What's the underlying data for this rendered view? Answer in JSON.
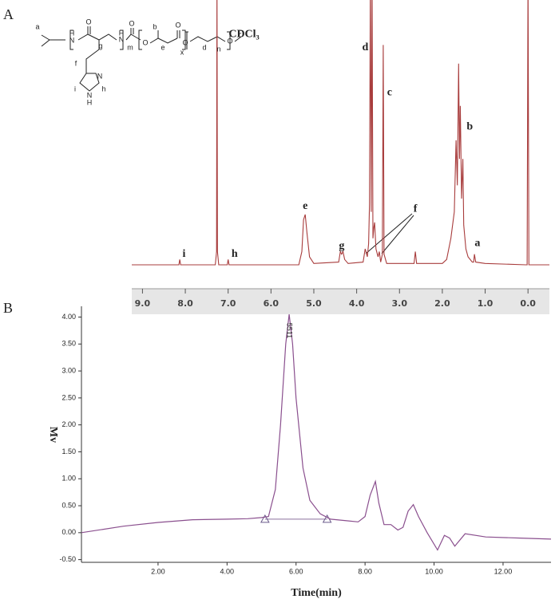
{
  "chart_data": [
    {
      "type": "line",
      "panel_label": "A",
      "color": "#a83c3c",
      "x": [
        9.25,
        8.15,
        8.13,
        8.11,
        7.3,
        7.27,
        7.26,
        7.25,
        7.22,
        7.02,
        7.0,
        6.98,
        5.35,
        5.28,
        5.24,
        5.2,
        5.16,
        5.1,
        5.0,
        4.42,
        4.38,
        4.35,
        4.32,
        4.28,
        4.2,
        3.85,
        3.8,
        3.75,
        3.72,
        3.7,
        3.68,
        3.66,
        3.64,
        3.62,
        3.6,
        3.58,
        3.55,
        3.5,
        3.47,
        3.44,
        3.4,
        3.38,
        3.36,
        3.3,
        2.66,
        2.63,
        2.6,
        2.0,
        1.9,
        1.8,
        1.72,
        1.68,
        1.65,
        1.62,
        1.6,
        1.58,
        1.55,
        1.52,
        1.5,
        1.45,
        1.4,
        1.3,
        1.27,
        1.25,
        1.22,
        1.0,
        0.05,
        0.02,
        0.0,
        -0.02,
        -0.05,
        -0.5
      ],
      "values": [
        0,
        0,
        2,
        0,
        0,
        5,
        110,
        5,
        0,
        0,
        2,
        0,
        0,
        5,
        17,
        19,
        12,
        3,
        0.5,
        1,
        5,
        4,
        5,
        2,
        0.5,
        1,
        6,
        3,
        8,
        23,
        110,
        20,
        110,
        10,
        14,
        16,
        6,
        3,
        5,
        1,
        4,
        83,
        4,
        0.5,
        0.5,
        5,
        0.5,
        0.5,
        2,
        10,
        20,
        47,
        30,
        76,
        40,
        60,
        25,
        40,
        15,
        6,
        3,
        1,
        1,
        4,
        1,
        0.5,
        0,
        0,
        110,
        0,
        0,
        0
      ],
      "xlim": [
        9.25,
        -0.5
      ],
      "ylim": [
        -2,
        100
      ],
      "xticks": [
        {
          "value": 9,
          "label": "9.0"
        },
        {
          "value": 8,
          "label": "8.0"
        },
        {
          "value": 7,
          "label": "7.0"
        },
        {
          "value": 6,
          "label": "6.0"
        },
        {
          "value": 5,
          "label": "5.0"
        },
        {
          "value": 4,
          "label": "4.0"
        },
        {
          "value": 3,
          "label": "3.0"
        },
        {
          "value": 2,
          "label": "2.0"
        },
        {
          "value": 1,
          "label": "1.0"
        },
        {
          "value": 0,
          "label": "0.0"
        }
      ],
      "annotations": [
        {
          "text": "CDCl₃",
          "x": 6.63,
          "y": 87
        },
        {
          "text": "i",
          "x": 8.03,
          "y": 4
        },
        {
          "text": "h",
          "x": 6.85,
          "y": 4
        },
        {
          "text": "e",
          "x": 5.2,
          "y": 22
        },
        {
          "text": "g",
          "x": 4.35,
          "y": 7
        },
        {
          "text": "d",
          "x": 3.8,
          "y": 82
        },
        {
          "text": "c",
          "x": 3.23,
          "y": 65
        },
        {
          "text": "f",
          "x": 2.63,
          "y": 21
        },
        {
          "text": "b",
          "x": 1.36,
          "y": 52
        },
        {
          "text": "a",
          "x": 1.18,
          "y": 8
        }
      ],
      "structure_labels": [
        "a",
        "H",
        "N",
        "O",
        "g",
        "H",
        "N",
        "m",
        "O",
        "O",
        "b",
        "e",
        "O",
        "x",
        "O",
        "d",
        "n",
        "O",
        "c",
        "f",
        "N",
        "i",
        "h",
        "N",
        "H"
      ]
    },
    {
      "type": "line",
      "panel_label": "B",
      "color": "#8a4f8e",
      "x": [
        -0.22,
        1,
        2,
        3,
        4,
        4.6,
        5.0,
        5.2,
        5.4,
        5.55,
        5.7,
        5.8,
        5.9,
        6.0,
        6.2,
        6.4,
        6.7,
        7.0,
        7.5,
        7.8,
        8.0,
        8.15,
        8.3,
        8.4,
        8.55,
        8.75,
        8.95,
        9.1,
        9.25,
        9.4,
        9.55,
        9.8,
        10.1,
        10.3,
        10.45,
        10.6,
        10.9,
        11.5,
        12.5,
        13.39
      ],
      "values": [
        0,
        0.12,
        0.19,
        0.24,
        0.25,
        0.26,
        0.28,
        0.3,
        0.8,
        2.0,
        3.5,
        4.05,
        3.5,
        2.5,
        1.2,
        0.6,
        0.35,
        0.25,
        0.22,
        0.2,
        0.3,
        0.7,
        0.95,
        0.55,
        0.15,
        0.15,
        0.05,
        0.1,
        0.4,
        0.52,
        0.3,
        0.0,
        -0.32,
        -0.05,
        -0.1,
        -0.25,
        -0.02,
        -0.08,
        -0.1,
        -0.12
      ],
      "xlim": [
        -0.22,
        13.39
      ],
      "ylim": [
        -0.55,
        4.2
      ],
      "xticks": [
        {
          "value": 2,
          "label": "2.00"
        },
        {
          "value": 4,
          "label": "4.00"
        },
        {
          "value": 6,
          "label": "6.00"
        },
        {
          "value": 8,
          "label": "8.00"
        },
        {
          "value": 10,
          "label": "10.00"
        },
        {
          "value": 12,
          "label": "12.00"
        }
      ],
      "yticks": [
        {
          "value": 4,
          "label": "4.00"
        },
        {
          "value": 3.5,
          "label": "3.50"
        },
        {
          "value": 3,
          "label": "3.00"
        },
        {
          "value": 2.5,
          "label": "2.50"
        },
        {
          "value": 2,
          "label": "2.00"
        },
        {
          "value": 1.5,
          "label": "1.50"
        },
        {
          "value": 1,
          "label": "1.00"
        },
        {
          "value": 0.5,
          "label": "0.50"
        },
        {
          "value": 0,
          "label": "0.00"
        },
        {
          "value": -0.5,
          "label": "-0.50"
        }
      ],
      "xlabel": "Time(min)",
      "ylabel": "Mv",
      "peak_label": {
        "text": "5511",
        "x": 5.8,
        "y": 3.75
      },
      "integration_markers": [
        {
          "x": 5.1,
          "y": 0.25
        },
        {
          "x": 6.9,
          "y": 0.25
        }
      ]
    }
  ]
}
